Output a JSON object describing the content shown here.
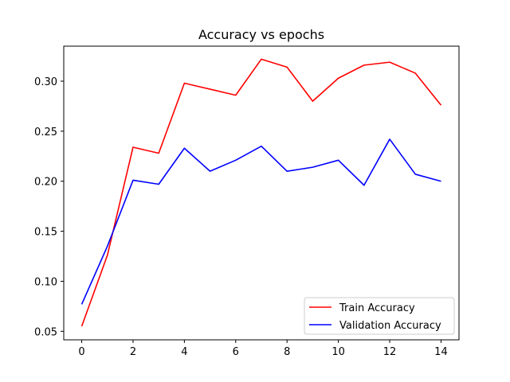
{
  "chart_data": {
    "type": "line",
    "title": "Accuracy vs epochs",
    "xlabel": "",
    "ylabel": "",
    "x": [
      0,
      1,
      2,
      3,
      4,
      5,
      6,
      7,
      8,
      9,
      10,
      11,
      12,
      13,
      14
    ],
    "xlim": [
      -0.7,
      14.7
    ],
    "ylim": [
      0.0415,
      0.335
    ],
    "xticks": [
      0,
      2,
      4,
      6,
      8,
      10,
      12,
      14
    ],
    "yticks": [
      0.05,
      0.1,
      0.15,
      0.2,
      0.25,
      0.3
    ],
    "ytick_labels": [
      "0.05",
      "0.10",
      "0.15",
      "0.20",
      "0.25",
      "0.30"
    ],
    "grid": false,
    "legend_position": "lower-right",
    "series": [
      {
        "name": "Train Accuracy",
        "color": "#ff0000",
        "values": [
          0.055,
          0.126,
          0.234,
          0.228,
          0.298,
          0.292,
          0.286,
          0.322,
          0.314,
          0.28,
          0.303,
          0.316,
          0.319,
          0.308,
          0.276
        ]
      },
      {
        "name": "Validation Accuracy",
        "color": "#0000ff",
        "values": [
          0.077,
          0.135,
          0.201,
          0.197,
          0.233,
          0.21,
          0.221,
          0.235,
          0.21,
          0.214,
          0.221,
          0.196,
          0.242,
          0.207,
          0.2
        ]
      }
    ]
  }
}
